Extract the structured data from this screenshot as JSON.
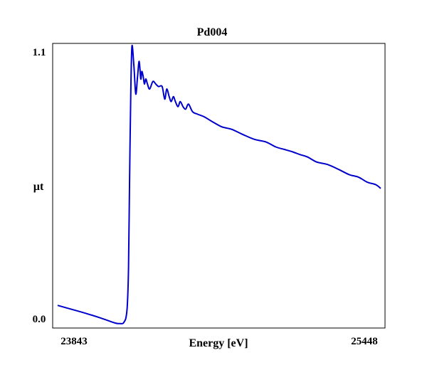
{
  "chart_data": {
    "type": "line",
    "title": "Pd004",
    "xlabel": "Energy [eV]",
    "ylabel": "µt",
    "xlim": [
      23843,
      25448
    ],
    "ylim": [
      0.0,
      1.1
    ],
    "x_tick_labels": [
      "23843",
      "25448"
    ],
    "y_tick_labels": [
      "0.0",
      "1.1"
    ],
    "grid": false,
    "series_color": "#0000cc",
    "series": [
      {
        "x": [
          23843,
          23955,
          24057,
          24129,
          24150,
          24166,
          24173,
          24182,
          24189,
          24195,
          24200,
          24206,
          24212,
          24222,
          24231,
          24240,
          24248,
          24256,
          24261,
          24268,
          24274,
          24281,
          24289,
          24300,
          24316,
          24330,
          24344,
          24362,
          24375,
          24385,
          24397,
          24407,
          24418,
          24428,
          24441,
          24452,
          24466,
          24479,
          24493,
          24513,
          24538,
          24570,
          24612,
          24658,
          24707,
          24761,
          24820,
          24877,
          24927,
          24969,
          25011,
          25045,
          25084,
          25130,
          25184,
          25240,
          25291,
          25337,
          25381,
          25423,
          25448
        ],
        "y": [
          0.07,
          0.045,
          0.02,
          0.0,
          -0.002,
          -0.002,
          0.004,
          0.02,
          0.07,
          0.22,
          0.55,
          0.9,
          1.1,
          1.02,
          0.91,
          0.98,
          1.04,
          0.97,
          1.0,
          0.98,
          0.95,
          0.97,
          0.95,
          0.93,
          0.96,
          0.95,
          0.94,
          0.94,
          0.89,
          0.93,
          0.9,
          0.88,
          0.9,
          0.88,
          0.86,
          0.88,
          0.86,
          0.85,
          0.87,
          0.84,
          0.83,
          0.82,
          0.8,
          0.78,
          0.77,
          0.75,
          0.73,
          0.72,
          0.7,
          0.69,
          0.68,
          0.67,
          0.66,
          0.64,
          0.63,
          0.61,
          0.59,
          0.58,
          0.56,
          0.55,
          0.535
        ]
      }
    ]
  }
}
